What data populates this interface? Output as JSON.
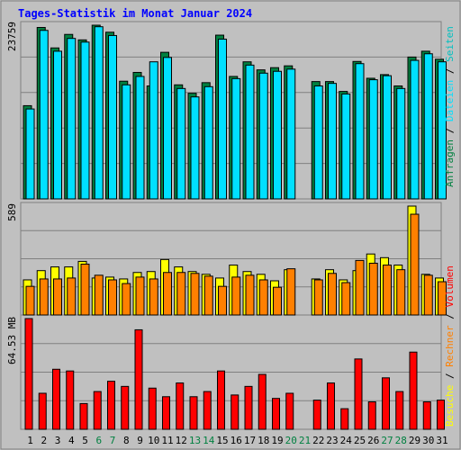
{
  "title": "Tages-Statistik im Monat Januar 2024",
  "colors": {
    "background": "#c0c0c0",
    "title": "#0000ff",
    "grid": "#808080",
    "anfragen": "#008040",
    "dateien": "#00e0ff",
    "seiten": "#00c0c0",
    "besuche": "#ffff00",
    "rechner": "#ff8000",
    "volumen": "#ff0000",
    "weekend_label": "#008040"
  },
  "chart_data": [
    {
      "type": "bar",
      "title": "Tages-Statistik im Monat Januar 2024",
      "panel": "top",
      "ylabel": "23759",
      "ymax": 23759,
      "categories": [
        "1",
        "2",
        "3",
        "4",
        "5",
        "6",
        "7",
        "8",
        "9",
        "10",
        "11",
        "12",
        "13",
        "14",
        "15",
        "16",
        "17",
        "18",
        "19",
        "20",
        "21",
        "22",
        "23",
        "24",
        "25",
        "26",
        "27",
        "28",
        "29",
        "30",
        "31"
      ],
      "weekend_categories": [
        "6",
        "7",
        "13",
        "14",
        "20",
        "21",
        "27",
        "28"
      ],
      "series": [
        {
          "name": "Anfragen",
          "values": [
            12750,
            23450,
            20650,
            22500,
            21750,
            23759,
            22800,
            16100,
            17300,
            15450,
            20050,
            15600,
            14450,
            15900,
            22400,
            16750,
            18750,
            17650,
            17950,
            18200,
            0,
            16050,
            16050,
            14700,
            18800,
            16500,
            17000,
            15450,
            19400,
            20200,
            19100
          ]
        },
        {
          "name": "Dateien",
          "values": [
            12300,
            23050,
            20200,
            21950,
            21450,
            23550,
            22350,
            15600,
            16750,
            18750,
            19350,
            15100,
            13950,
            15350,
            21850,
            16450,
            18300,
            17200,
            17450,
            17750,
            0,
            15450,
            15800,
            14350,
            18500,
            16300,
            16850,
            15100,
            18950,
            19850,
            18750
          ]
        }
      ]
    },
    {
      "type": "bar",
      "panel": "middle",
      "ylabel": "589",
      "ymax": 589,
      "categories": [
        "1",
        "2",
        "3",
        "4",
        "5",
        "6",
        "7",
        "8",
        "9",
        "10",
        "11",
        "12",
        "13",
        "14",
        "15",
        "16",
        "17",
        "18",
        "19",
        "20",
        "21",
        "22",
        "23",
        "24",
        "25",
        "26",
        "27",
        "28",
        "29",
        "30",
        "31"
      ],
      "series": [
        {
          "name": "Seiten",
          "values": [
            0,
            0,
            0,
            0,
            0,
            0,
            0,
            0,
            0,
            0,
            0,
            0,
            0,
            0,
            0,
            0,
            0,
            0,
            0,
            0,
            0,
            0,
            0,
            0,
            0,
            0,
            0,
            0,
            0,
            0,
            0
          ]
        },
        {
          "name": "Besuche",
          "values": [
            190,
            240,
            260,
            260,
            290,
            200,
            205,
            195,
            230,
            235,
            300,
            260,
            235,
            220,
            200,
            270,
            235,
            220,
            185,
            245,
            0,
            195,
            245,
            190,
            240,
            330,
            310,
            270,
            589,
            220,
            200
          ]
        },
        {
          "name": "Rechner",
          "values": [
            155,
            195,
            195,
            200,
            275,
            215,
            190,
            170,
            205,
            195,
            230,
            230,
            225,
            210,
            155,
            205,
            215,
            190,
            150,
            250,
            0,
            190,
            225,
            175,
            295,
            280,
            270,
            245,
            545,
            215,
            180
          ]
        }
      ]
    },
    {
      "type": "bar",
      "panel": "bottom",
      "ylabel": "64.53 MB",
      "ymax": 64.53,
      "categories": [
        "1",
        "2",
        "3",
        "4",
        "5",
        "6",
        "7",
        "8",
        "9",
        "10",
        "11",
        "12",
        "13",
        "14",
        "15",
        "16",
        "17",
        "18",
        "19",
        "20",
        "21",
        "22",
        "23",
        "24",
        "25",
        "26",
        "27",
        "28",
        "29",
        "30",
        "31"
      ],
      "series": [
        {
          "name": "Volumen",
          "values": [
            64.53,
            21,
            35,
            34,
            15,
            22,
            28,
            25,
            58,
            24,
            19,
            27,
            19,
            22,
            34,
            20,
            25,
            32,
            18,
            21,
            0,
            17,
            27,
            12,
            41,
            16,
            30,
            22,
            45,
            16,
            17
          ]
        }
      ]
    }
  ],
  "legend": {
    "right_top": [
      "Anfragen",
      "Dateien",
      "Seiten"
    ],
    "right_bottom": [
      "Besuche",
      "Rechner",
      "Volumen"
    ],
    "separator": "/"
  }
}
